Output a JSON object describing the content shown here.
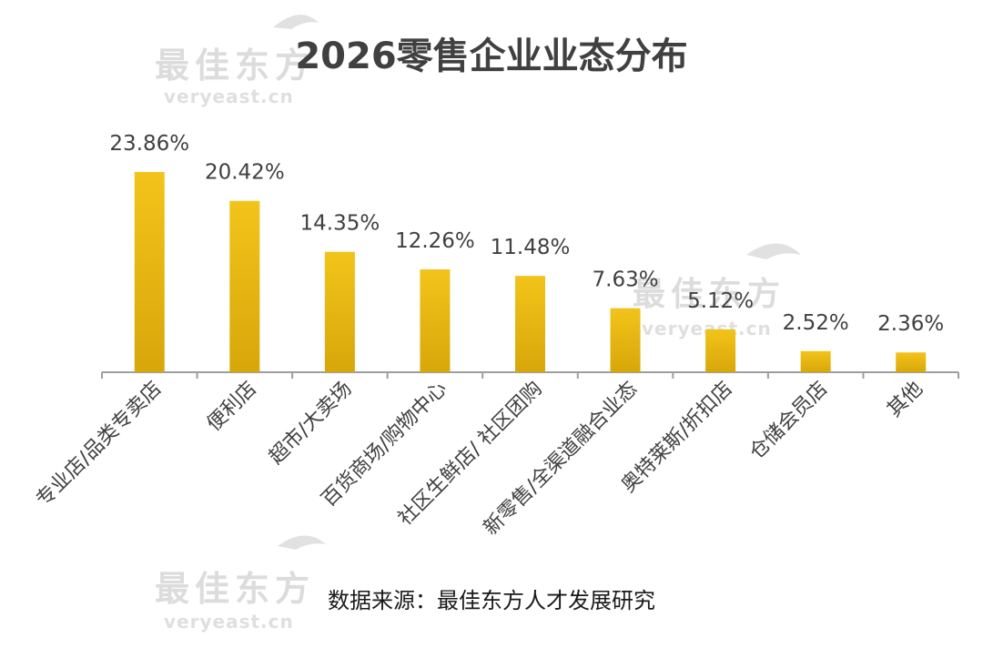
{
  "watermark": {
    "brand": "最佳东方",
    "domain": "veryeast.cn"
  },
  "source_note": "数据来源：最佳东方人才发展研究",
  "colors": {
    "bar_top": "#f2c41a",
    "bar_bottom": "#d7a70a",
    "axis": "#9e9e9e",
    "text": "#404040"
  },
  "chart_data": {
    "type": "bar",
    "title": "2026零售企业业态分布",
    "xlabel": "",
    "ylabel": "",
    "ylim": [
      0,
      25
    ],
    "grid": false,
    "legend": "none",
    "categories": [
      "专业店/品类专卖店",
      "便利店",
      "超市/大卖场",
      "百货商场/购物中心",
      "社区生鲜店/ 社区团购",
      "新零售/全渠道融合业态",
      "奥特莱斯/折扣店",
      "仓储会员店",
      "其他"
    ],
    "values": [
      23.86,
      20.42,
      14.35,
      12.26,
      11.48,
      7.63,
      5.12,
      2.52,
      2.36
    ],
    "value_labels": [
      "23.86%",
      "20.42%",
      "14.35%",
      "12.26%",
      "11.48%",
      "7.63%",
      "5.12%",
      "2.52%",
      "2.36%"
    ]
  }
}
